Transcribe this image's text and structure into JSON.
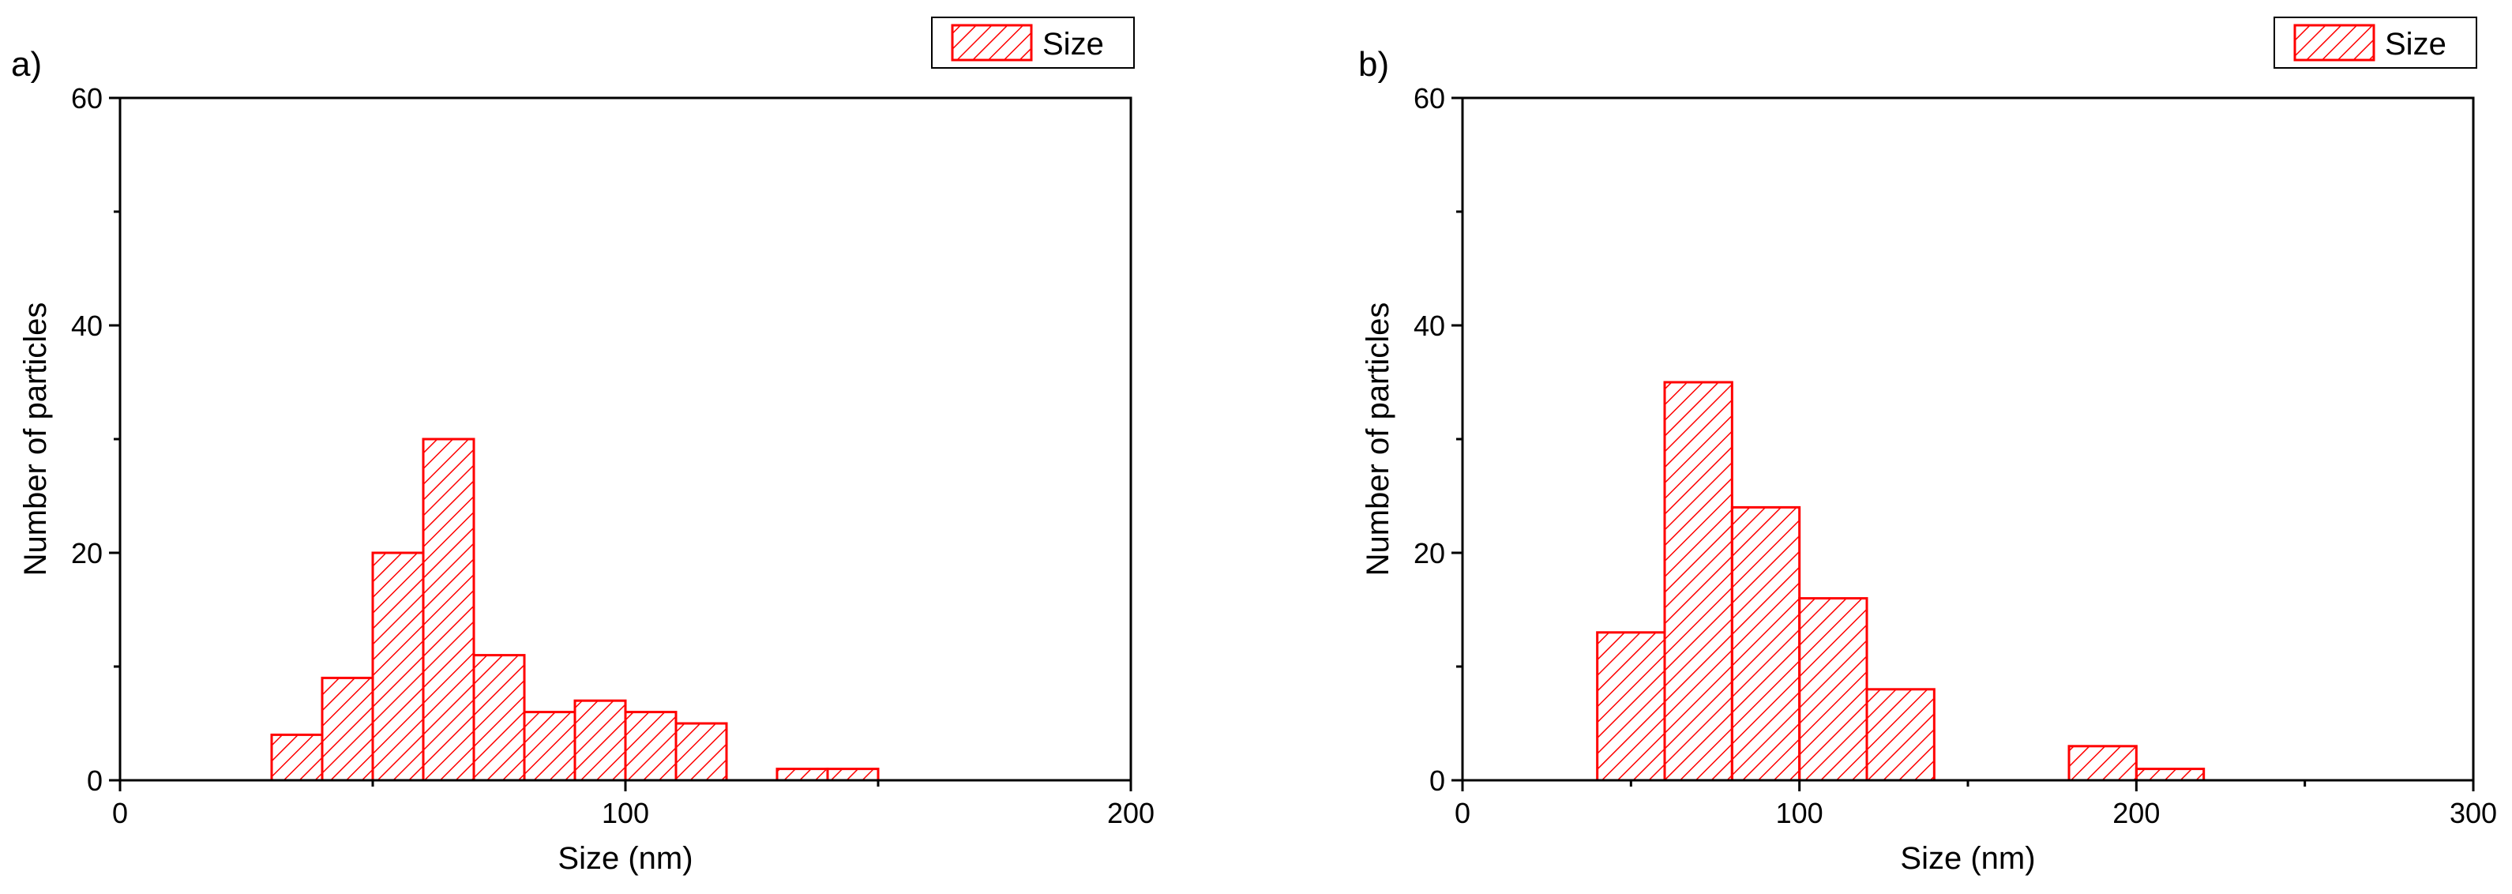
{
  "chart_data": [
    {
      "type": "bar",
      "panel_label": "a)",
      "xlabel": "Size (nm)",
      "ylabel": "Number of particles",
      "xlim": [
        0,
        200
      ],
      "ylim": [
        0,
        60
      ],
      "x_major_ticks": [
        0,
        100,
        200
      ],
      "x_minor_ticks": [
        50,
        150
      ],
      "y_major_ticks": [
        0,
        20,
        40,
        60
      ],
      "y_minor_ticks": [
        10,
        30,
        50
      ],
      "legend": "top-right",
      "grid": false,
      "series": [
        {
          "name": "Size",
          "color": "#ff0000",
          "fill_pattern": "diagonal-hatch",
          "bins": [
            {
              "start": 30,
              "end": 40,
              "count": 4
            },
            {
              "start": 40,
              "end": 50,
              "count": 9
            },
            {
              "start": 50,
              "end": 60,
              "count": 20
            },
            {
              "start": 60,
              "end": 70,
              "count": 30
            },
            {
              "start": 70,
              "end": 80,
              "count": 11
            },
            {
              "start": 80,
              "end": 90,
              "count": 6
            },
            {
              "start": 90,
              "end": 100,
              "count": 7
            },
            {
              "start": 100,
              "end": 110,
              "count": 6
            },
            {
              "start": 110,
              "end": 120,
              "count": 5
            },
            {
              "start": 120,
              "end": 130,
              "count": 0
            },
            {
              "start": 130,
              "end": 140,
              "count": 1
            },
            {
              "start": 140,
              "end": 150,
              "count": 1
            }
          ]
        }
      ]
    },
    {
      "type": "bar",
      "panel_label": "b)",
      "xlabel": "Size (nm)",
      "ylabel": "Number of particles",
      "xlim": [
        0,
        300
      ],
      "ylim": [
        0,
        60
      ],
      "x_major_ticks": [
        0,
        100,
        200,
        300
      ],
      "x_minor_ticks": [
        50,
        150,
        250
      ],
      "y_major_ticks": [
        0,
        20,
        40,
        60
      ],
      "y_minor_ticks": [
        10,
        30,
        50
      ],
      "legend": "top-right",
      "grid": false,
      "series": [
        {
          "name": "Size",
          "color": "#ff0000",
          "fill_pattern": "diagonal-hatch",
          "bins": [
            {
              "start": 40,
              "end": 60,
              "count": 13
            },
            {
              "start": 60,
              "end": 80,
              "count": 35
            },
            {
              "start": 80,
              "end": 100,
              "count": 24
            },
            {
              "start": 100,
              "end": 120,
              "count": 16
            },
            {
              "start": 120,
              "end": 140,
              "count": 8
            },
            {
              "start": 140,
              "end": 160,
              "count": 0
            },
            {
              "start": 160,
              "end": 180,
              "count": 0
            },
            {
              "start": 180,
              "end": 200,
              "count": 3
            },
            {
              "start": 200,
              "end": 220,
              "count": 1
            }
          ]
        }
      ]
    }
  ]
}
